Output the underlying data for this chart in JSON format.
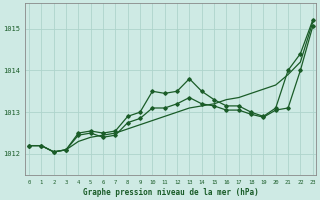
{
  "title": "Graphe pression niveau de la mer (hPa)",
  "bg_color": "#ceeae4",
  "line_color": "#1a5c28",
  "grid_color": "#aed4cc",
  "yticks": [
    1012,
    1013,
    1014,
    1015
  ],
  "ylim": [
    1011.5,
    1015.6
  ],
  "xlim": [
    -0.3,
    23.3
  ],
  "x_ticks": [
    0,
    1,
    2,
    3,
    4,
    5,
    6,
    7,
    8,
    9,
    10,
    11,
    12,
    13,
    14,
    15,
    16,
    17,
    18,
    19,
    20,
    21,
    22,
    23
  ],
  "line_smooth": [
    1012.2,
    1012.2,
    1012.05,
    1012.1,
    1012.3,
    1012.4,
    1012.45,
    1012.5,
    1012.6,
    1012.7,
    1012.8,
    1012.9,
    1013.0,
    1013.1,
    1013.15,
    1013.2,
    1013.3,
    1013.35,
    1013.45,
    1013.55,
    1013.65,
    1013.9,
    1014.2,
    1015.15
  ],
  "line_upper": [
    1012.2,
    1012.2,
    1012.05,
    1012.1,
    1012.5,
    1012.55,
    1012.5,
    1012.55,
    1012.9,
    1013.0,
    1013.5,
    1013.45,
    1013.5,
    1013.8,
    1013.5,
    1013.3,
    1013.15,
    1013.15,
    1013.0,
    1012.9,
    1013.1,
    1014.0,
    1014.4,
    1015.2
  ],
  "line_lower": [
    1012.2,
    1012.2,
    1012.05,
    1012.1,
    1012.45,
    1012.5,
    1012.4,
    1012.45,
    1012.75,
    1012.85,
    1013.1,
    1013.1,
    1013.2,
    1013.35,
    1013.2,
    1013.15,
    1013.05,
    1013.05,
    1012.95,
    1012.88,
    1013.05,
    1013.1,
    1014.0,
    1015.05
  ]
}
